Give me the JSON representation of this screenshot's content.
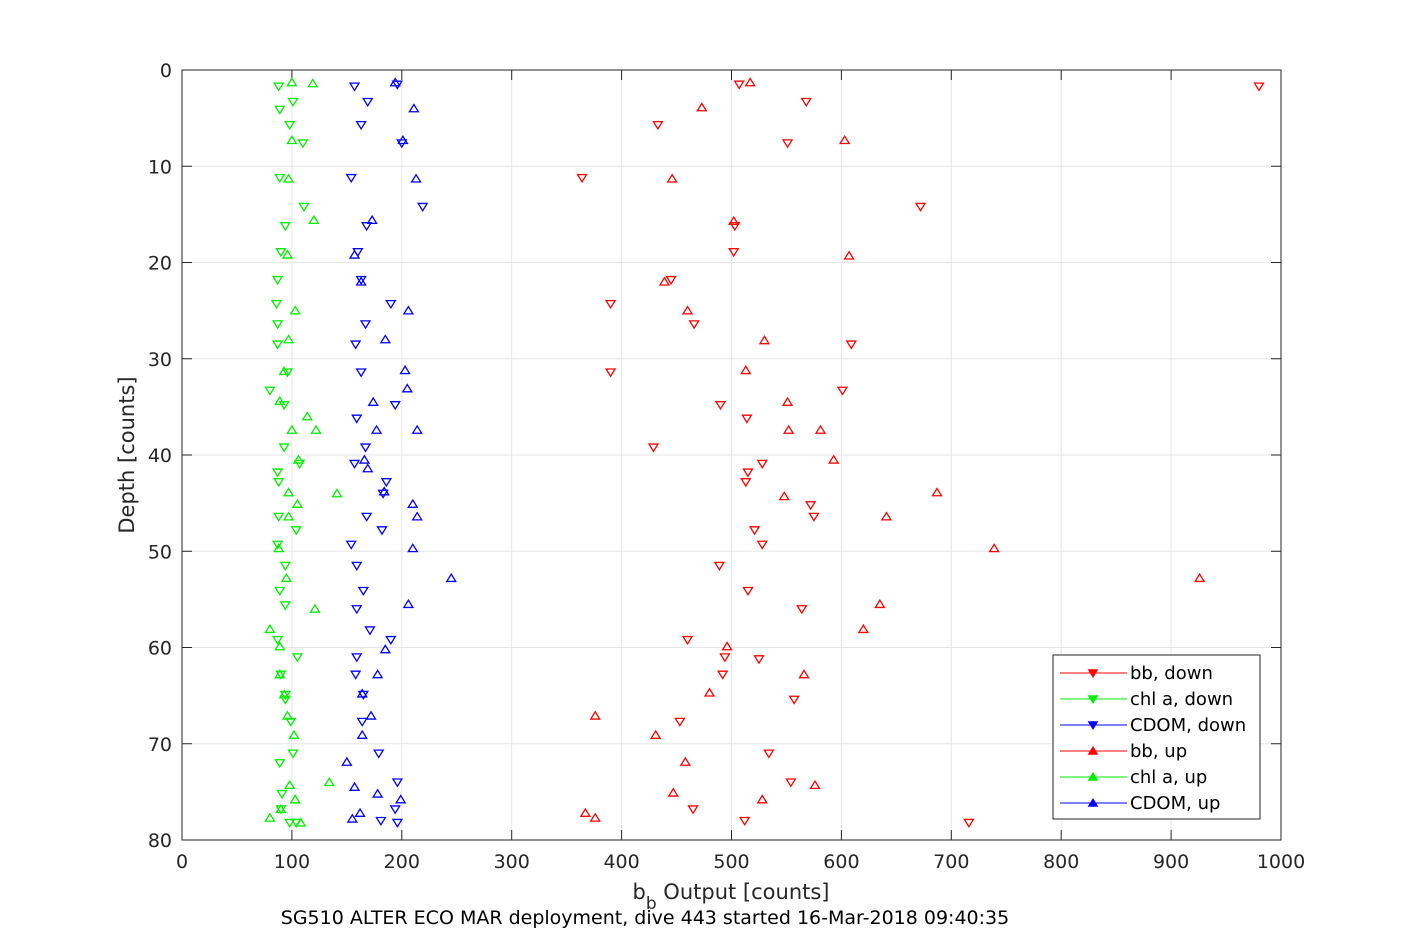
{
  "chart_data": {
    "type": "scatter",
    "title": "SG510 ALTER ECO MAR deployment, dive 443 started 16-Mar-2018 09:40:35",
    "xlabel_main": "b",
    "xlabel_sub": "b",
    "xlabel_rest": " Output [counts]",
    "ylabel": "Depth [counts]",
    "xlim": [
      0,
      1000
    ],
    "ylim": [
      0,
      80
    ],
    "y_reversed": true,
    "grid": true,
    "legend_position": "bottom-right",
    "x_ticks": [
      "0",
      "100",
      "200",
      "300",
      "400",
      "500",
      "600",
      "700",
      "800",
      "900",
      "1000"
    ],
    "y_ticks": [
      "0",
      "10",
      "20",
      "30",
      "40",
      "50",
      "60",
      "70",
      "80"
    ],
    "series": [
      {
        "name": "bb, down",
        "color": "#ff0000",
        "marker": "triangle-down",
        "points": [
          [
            980,
            1.7
          ],
          [
            507,
            1.5
          ],
          [
            568,
            3.3
          ],
          [
            433,
            5.7
          ],
          [
            551,
            7.6
          ],
          [
            364,
            11.2
          ],
          [
            672,
            14.2
          ],
          [
            503,
            16.2
          ],
          [
            502,
            18.9
          ],
          [
            445,
            21.8
          ],
          [
            390,
            24.3
          ],
          [
            466,
            26.4
          ],
          [
            609,
            28.5
          ],
          [
            390,
            31.4
          ],
          [
            601,
            33.3
          ],
          [
            490,
            34.8
          ],
          [
            514,
            36.2
          ],
          [
            429,
            39.2
          ],
          [
            528,
            40.9
          ],
          [
            515,
            41.8
          ],
          [
            513,
            42.8
          ],
          [
            572,
            45.2
          ],
          [
            575,
            46.4
          ],
          [
            521,
            47.8
          ],
          [
            528,
            49.3
          ],
          [
            489,
            51.5
          ],
          [
            515,
            54.1
          ],
          [
            564,
            56.0
          ],
          [
            460,
            59.2
          ],
          [
            494,
            61.0
          ],
          [
            525,
            61.2
          ],
          [
            492,
            62.8
          ],
          [
            557,
            65.4
          ],
          [
            453,
            67.7
          ],
          [
            534,
            71.0
          ],
          [
            554,
            74.0
          ],
          [
            465,
            76.8
          ],
          [
            512,
            78.0
          ],
          [
            716,
            78.2
          ]
        ]
      },
      {
        "name": "chl a, down",
        "color": "#00ee00",
        "marker": "triangle-down",
        "points": [
          [
            88,
            1.7
          ],
          [
            101,
            3.3
          ],
          [
            89,
            4.1
          ],
          [
            98,
            5.7
          ],
          [
            110,
            7.6
          ],
          [
            89,
            11.2
          ],
          [
            111,
            14.2
          ],
          [
            94,
            16.2
          ],
          [
            90,
            18.9
          ],
          [
            87,
            21.8
          ],
          [
            86,
            24.3
          ],
          [
            87,
            26.4
          ],
          [
            87,
            28.5
          ],
          [
            96,
            31.4
          ],
          [
            80,
            33.3
          ],
          [
            93,
            34.8
          ],
          [
            93,
            39.2
          ],
          [
            107,
            40.9
          ],
          [
            87,
            41.8
          ],
          [
            88,
            42.8
          ],
          [
            88,
            46.4
          ],
          [
            104,
            47.8
          ],
          [
            87,
            49.3
          ],
          [
            94,
            51.5
          ],
          [
            89,
            54.1
          ],
          [
            94,
            55.6
          ],
          [
            87,
            59.2
          ],
          [
            105,
            61.0
          ],
          [
            90,
            62.8
          ],
          [
            94,
            64.9
          ],
          [
            94,
            65.4
          ],
          [
            99,
            67.7
          ],
          [
            101,
            71.0
          ],
          [
            89,
            72.0
          ],
          [
            91,
            75.2
          ],
          [
            90,
            76.8
          ],
          [
            104,
            78.2
          ],
          [
            98,
            78.2
          ]
        ]
      },
      {
        "name": "CDOM, down",
        "color": "#0000ff",
        "marker": "triangle-down",
        "points": [
          [
            157,
            1.7
          ],
          [
            196,
            1.5
          ],
          [
            169,
            3.3
          ],
          [
            163,
            5.7
          ],
          [
            200,
            7.6
          ],
          [
            154,
            11.2
          ],
          [
            219,
            14.2
          ],
          [
            168,
            16.2
          ],
          [
            160,
            18.9
          ],
          [
            163,
            21.8
          ],
          [
            190,
            24.3
          ],
          [
            167,
            26.4
          ],
          [
            158,
            28.5
          ],
          [
            163,
            31.4
          ],
          [
            194,
            34.8
          ],
          [
            159,
            36.2
          ],
          [
            167,
            39.2
          ],
          [
            157,
            40.9
          ],
          [
            186,
            42.8
          ],
          [
            183,
            44.0
          ],
          [
            168,
            46.4
          ],
          [
            182,
            47.8
          ],
          [
            154,
            49.3
          ],
          [
            159,
            51.5
          ],
          [
            165,
            54.1
          ],
          [
            159,
            56.0
          ],
          [
            171,
            58.2
          ],
          [
            190,
            59.2
          ],
          [
            159,
            61.0
          ],
          [
            158,
            62.8
          ],
          [
            165,
            64.9
          ],
          [
            164,
            67.7
          ],
          [
            179,
            71.0
          ],
          [
            196,
            74.0
          ],
          [
            194,
            76.8
          ],
          [
            181,
            78.0
          ],
          [
            196,
            78.2
          ]
        ]
      },
      {
        "name": "bb, up",
        "color": "#ff0000",
        "marker": "triangle-up",
        "points": [
          [
            517,
            1.3
          ],
          [
            473,
            3.9
          ],
          [
            603,
            7.3
          ],
          [
            446,
            11.3
          ],
          [
            502,
            15.7
          ],
          [
            607,
            19.3
          ],
          [
            439,
            22.0
          ],
          [
            460,
            25.0
          ],
          [
            530,
            28.1
          ],
          [
            513,
            31.2
          ],
          [
            551,
            34.5
          ],
          [
            552,
            37.4
          ],
          [
            581,
            37.4
          ],
          [
            593,
            40.5
          ],
          [
            687,
            43.9
          ],
          [
            548,
            44.3
          ],
          [
            641,
            46.4
          ],
          [
            739,
            49.7
          ],
          [
            926,
            52.8
          ],
          [
            635,
            55.5
          ],
          [
            620,
            58.1
          ],
          [
            496,
            59.9
          ],
          [
            566,
            62.8
          ],
          [
            480,
            64.7
          ],
          [
            376,
            67.1
          ],
          [
            431,
            69.1
          ],
          [
            458,
            71.9
          ],
          [
            576,
            74.3
          ],
          [
            447,
            75.1
          ],
          [
            528,
            75.8
          ],
          [
            367,
            77.2
          ],
          [
            376,
            77.7
          ]
        ]
      },
      {
        "name": "chl a, up",
        "color": "#00ee00",
        "marker": "triangle-up",
        "points": [
          [
            100,
            1.3
          ],
          [
            119,
            1.4
          ],
          [
            100,
            7.3
          ],
          [
            97,
            11.3
          ],
          [
            120,
            15.6
          ],
          [
            96,
            19.2
          ],
          [
            103,
            25.0
          ],
          [
            97,
            28.0
          ],
          [
            93,
            31.3
          ],
          [
            89,
            34.4
          ],
          [
            114,
            36.0
          ],
          [
            100,
            37.4
          ],
          [
            122,
            37.4
          ],
          [
            106,
            40.5
          ],
          [
            97,
            43.9
          ],
          [
            141,
            44.0
          ],
          [
            105,
            45.1
          ],
          [
            97,
            46.4
          ],
          [
            88,
            49.7
          ],
          [
            95,
            52.8
          ],
          [
            121,
            56.0
          ],
          [
            80,
            58.1
          ],
          [
            89,
            59.9
          ],
          [
            89,
            62.8
          ],
          [
            93,
            64.9
          ],
          [
            96,
            67.1
          ],
          [
            102,
            69.1
          ],
          [
            134,
            74.0
          ],
          [
            98,
            74.3
          ],
          [
            103,
            75.8
          ],
          [
            90,
            76.8
          ],
          [
            80,
            77.7
          ],
          [
            108,
            78.2
          ]
        ]
      },
      {
        "name": "CDOM, up",
        "color": "#0000ff",
        "marker": "triangle-up",
        "points": [
          [
            194,
            1.3
          ],
          [
            211,
            4.0
          ],
          [
            201,
            7.3
          ],
          [
            213,
            11.3
          ],
          [
            173,
            15.6
          ],
          [
            157,
            19.2
          ],
          [
            163,
            22.0
          ],
          [
            206,
            25.0
          ],
          [
            185,
            28.0
          ],
          [
            203,
            31.2
          ],
          [
            205,
            33.1
          ],
          [
            174,
            34.5
          ],
          [
            177,
            37.4
          ],
          [
            214,
            37.4
          ],
          [
            166,
            40.5
          ],
          [
            169,
            41.4
          ],
          [
            184,
            43.8
          ],
          [
            210,
            45.1
          ],
          [
            214,
            46.4
          ],
          [
            210,
            49.7
          ],
          [
            245,
            52.8
          ],
          [
            206,
            55.5
          ],
          [
            185,
            60.2
          ],
          [
            178,
            62.8
          ],
          [
            164,
            64.8
          ],
          [
            172,
            67.1
          ],
          [
            164,
            69.1
          ],
          [
            150,
            71.9
          ],
          [
            157,
            74.5
          ],
          [
            178,
            75.2
          ],
          [
            199,
            75.8
          ],
          [
            162,
            77.2
          ],
          [
            155,
            77.8
          ]
        ]
      }
    ]
  }
}
